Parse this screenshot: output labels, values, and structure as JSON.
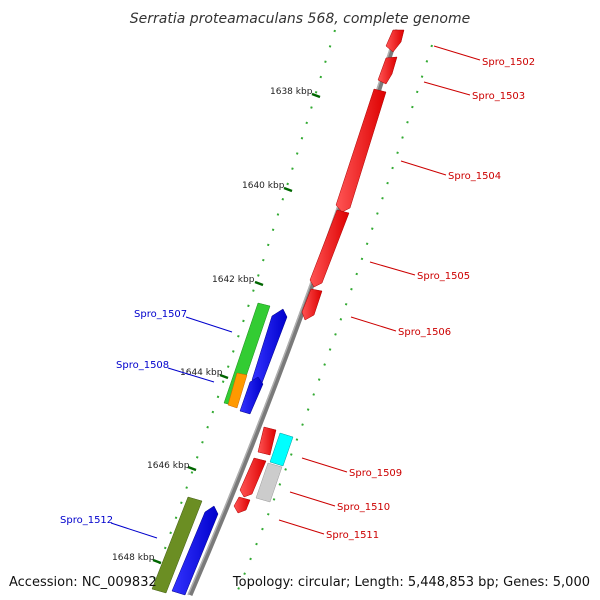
{
  "title": "Serratia proteamaculans 568, complete genome",
  "accession_text": "Accession: NC_009832",
  "topology_text": "Topology: circular; Length: 5,448,853 bp; Genes: 5,000",
  "ticks": [
    {
      "label": "1638 kbp"
    },
    {
      "label": "1640 kbp"
    },
    {
      "label": "1642 kbp"
    },
    {
      "label": "1644 kbp"
    },
    {
      "label": "1646 kbp"
    },
    {
      "label": "1648 kbp"
    }
  ],
  "genes_right": [
    {
      "label": "Spro_1502",
      "color": "#cc0000"
    },
    {
      "label": "Spro_1503",
      "color": "#cc0000"
    },
    {
      "label": "Spro_1504",
      "color": "#cc0000"
    },
    {
      "label": "Spro_1505",
      "color": "#cc0000"
    },
    {
      "label": "Spro_1506",
      "color": "#cc0000"
    },
    {
      "label": "Spro_1509",
      "color": "#cc0000"
    },
    {
      "label": "Spro_1510",
      "color": "#cc0000"
    },
    {
      "label": "Spro_1511",
      "color": "#cc0000"
    }
  ],
  "genes_left": [
    {
      "label": "Spro_1507",
      "color": "#0000cc"
    },
    {
      "label": "Spro_1508",
      "color": "#0000cc"
    },
    {
      "label": "Spro_1512",
      "color": "#0000cc"
    }
  ],
  "colors": {
    "forward_red": "#ff0000",
    "reverse_blue": "#0000ff",
    "green": "#33cc33",
    "orange": "#ff9900",
    "cyan": "#00ffff",
    "grey": "#cccccc",
    "olive": "#6b8e23",
    "backbone": "#808080",
    "tick": "#006600"
  }
}
